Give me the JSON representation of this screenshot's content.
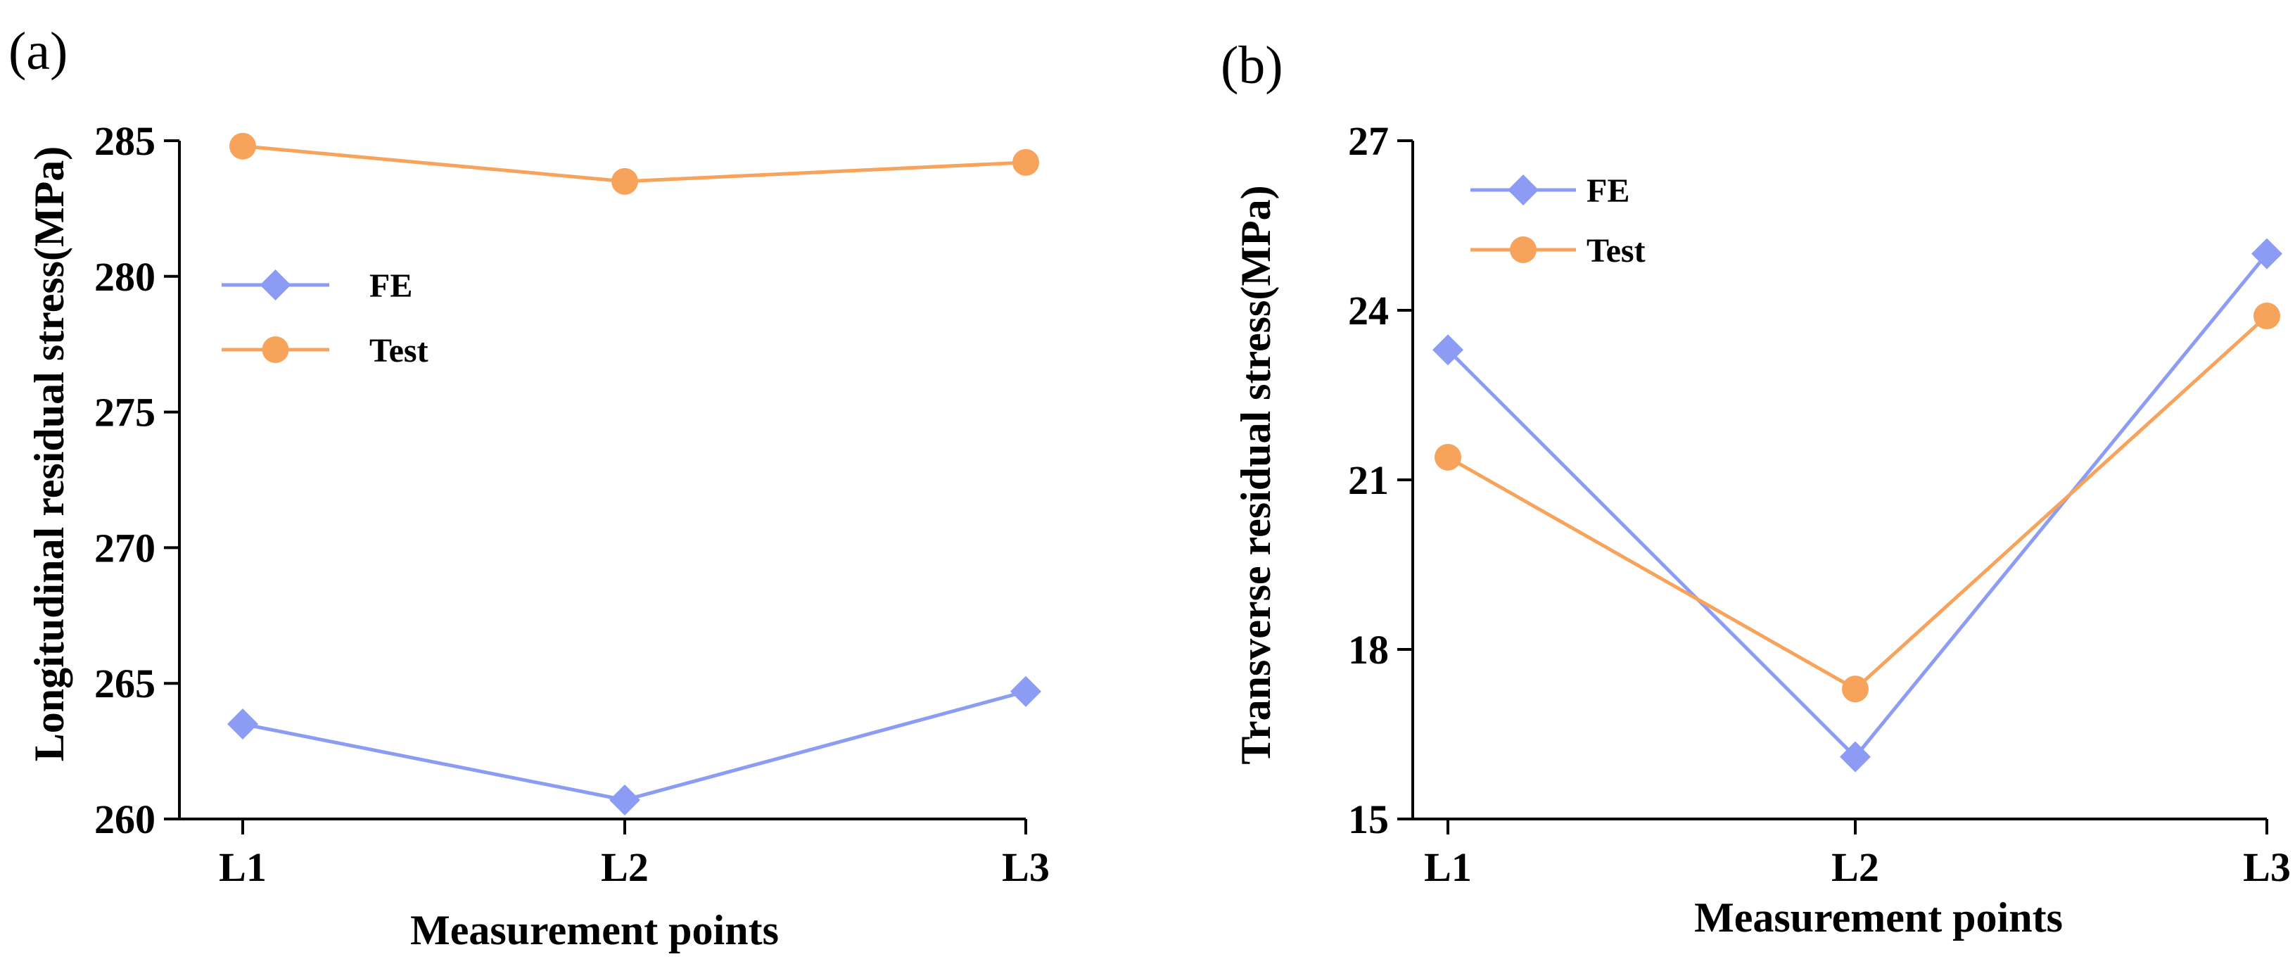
{
  "chart_data": [
    {
      "panel_label": "(a)",
      "type": "line",
      "categories": [
        "L1",
        "L2",
        "L3"
      ],
      "series": [
        {
          "name": "FE",
          "values": [
            263.5,
            260.7,
            264.7
          ],
          "color": "#8c9cf5",
          "marker": "diamond"
        },
        {
          "name": "Test",
          "values": [
            284.8,
            283.5,
            284.2
          ],
          "color": "#f7a35c",
          "marker": "circle"
        }
      ],
      "xlabel": "Measurement points",
      "ylabel": "Longitudinal residual stress(MPa)",
      "ylim": [
        260,
        285
      ],
      "yticks": [
        "260",
        "265",
        "270",
        "275",
        "280",
        "285"
      ],
      "legend": "upper-left, inside plot"
    },
    {
      "panel_label": "(b)",
      "type": "line",
      "categories": [
        "L1",
        "L2",
        "L3"
      ],
      "series": [
        {
          "name": "FE",
          "values": [
            23.3,
            16.1,
            25.0
          ],
          "color": "#8c9cf5",
          "marker": "diamond"
        },
        {
          "name": "Test",
          "values": [
            21.4,
            17.3,
            23.9
          ],
          "color": "#f7a35c",
          "marker": "circle"
        }
      ],
      "xlabel": "Measurement points",
      "ylabel": "Transverse residual stress(MPa)",
      "ylim": [
        15,
        27
      ],
      "yticks": [
        "15",
        "18",
        "21",
        "24",
        "27"
      ],
      "legend": "upper-left, inside plot"
    }
  ]
}
